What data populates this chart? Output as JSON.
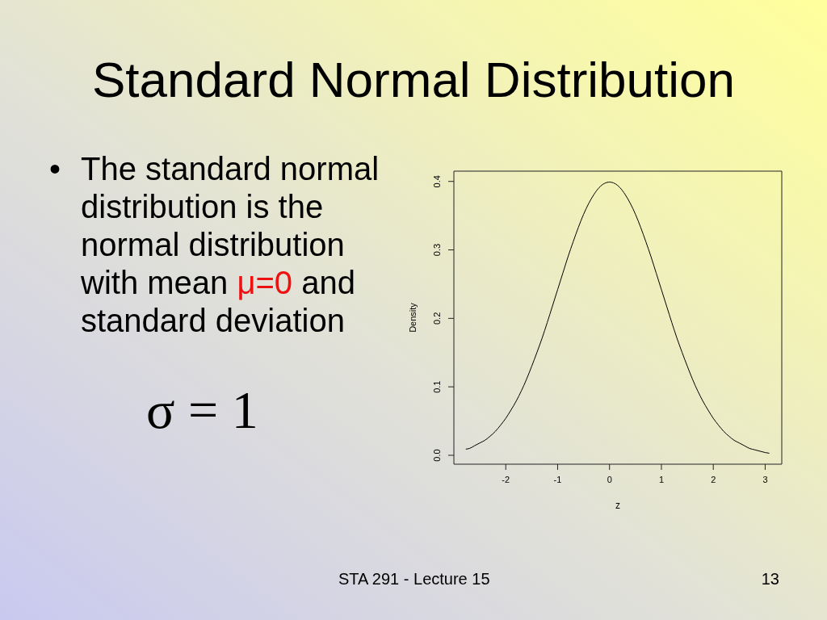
{
  "chart_data": {
    "type": "line",
    "title": "Standard Normal Distribution",
    "xlabel": "z",
    "ylabel": "Density",
    "x": [
      -2.77,
      -2.7,
      -2.6,
      -2.5,
      -2.4,
      -2.3,
      -2.2,
      -2.1,
      -2.0,
      -1.9,
      -1.8,
      -1.7,
      -1.6,
      -1.5,
      -1.4,
      -1.3,
      -1.2,
      -1.1,
      -1.0,
      -0.9,
      -0.8,
      -0.7,
      -0.6,
      -0.5,
      -0.4,
      -0.3,
      -0.2,
      -0.1,
      0,
      0.1,
      0.2,
      0.3,
      0.4,
      0.5,
      0.6,
      0.7,
      0.8,
      0.9,
      1.0,
      1.1,
      1.2,
      1.3,
      1.4,
      1.5,
      1.6,
      1.7,
      1.8,
      1.9,
      2.0,
      2.1,
      2.2,
      2.3,
      2.4,
      2.5,
      2.6,
      2.7,
      2.8,
      2.9,
      3.0,
      3.08
    ],
    "values": [
      0.009,
      0.01,
      0.014,
      0.018,
      0.022,
      0.028,
      0.035,
      0.044,
      0.054,
      0.066,
      0.079,
      0.094,
      0.111,
      0.13,
      0.15,
      0.171,
      0.194,
      0.218,
      0.242,
      0.266,
      0.29,
      0.312,
      0.333,
      0.352,
      0.368,
      0.381,
      0.391,
      0.397,
      0.399,
      0.397,
      0.391,
      0.381,
      0.368,
      0.352,
      0.333,
      0.312,
      0.29,
      0.266,
      0.242,
      0.218,
      0.194,
      0.171,
      0.15,
      0.13,
      0.111,
      0.094,
      0.079,
      0.066,
      0.054,
      0.044,
      0.035,
      0.028,
      0.022,
      0.018,
      0.014,
      0.01,
      0.008,
      0.006,
      0.004,
      0.003
    ],
    "color": "#000000",
    "xlim": [
      -3.0,
      3.32
    ],
    "ylim": [
      -0.013,
      0.415
    ],
    "xticks": [
      -2,
      -1,
      0,
      1,
      2,
      3
    ],
    "yticks": [
      {
        "value": 0,
        "label": "0.0"
      },
      0.1,
      0.2,
      0.3,
      0.4
    ],
    "annotations": [
      "•",
      "The standard normal distribution is the normal distribution",
      "with mean",
      "μ=0",
      "and",
      "standard deviation",
      "σ = 1",
      "STA 291 - Lecture 15",
      "13"
    ]
  }
}
